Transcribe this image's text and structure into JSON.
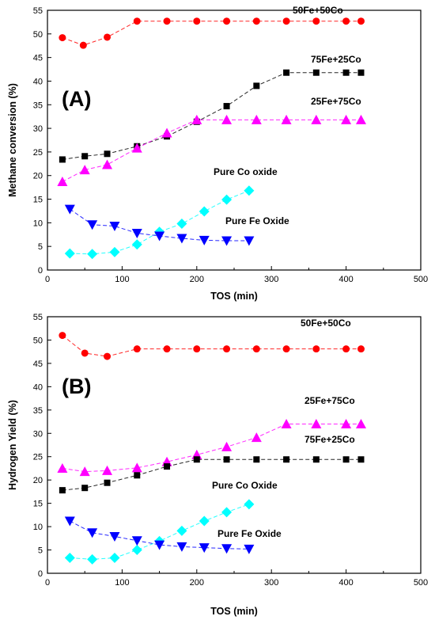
{
  "chart_data": [
    {
      "type": "line",
      "panel": "(A)",
      "xlabel": "TOS (min)",
      "ylabel": "Methane conversion (%)",
      "xlim": [
        0,
        500
      ],
      "ylim": [
        0,
        55
      ],
      "xticks": [
        0,
        100,
        200,
        300,
        400,
        500
      ],
      "yticks": [
        0,
        5,
        10,
        15,
        20,
        25,
        30,
        35,
        40,
        45,
        50,
        55
      ],
      "grid": false,
      "series": [
        {
          "name": "50Fe+50Co",
          "color": "#ff0000",
          "marker": "circle",
          "x": [
            20,
            48,
            80,
            120,
            160,
            200,
            240,
            280,
            320,
            360,
            400,
            420
          ],
          "y": [
            49.2,
            47.6,
            49.3,
            52.7,
            52.7,
            52.7,
            52.7,
            52.7,
            52.7,
            52.7,
            52.7,
            52.7
          ]
        },
        {
          "name": "75Fe+25Co",
          "color": "#000000",
          "marker": "square",
          "x": [
            20,
            50,
            80,
            120,
            160,
            200,
            240,
            280,
            320,
            360,
            400,
            420
          ],
          "y": [
            23.4,
            24.1,
            24.6,
            26.2,
            28.3,
            31.4,
            34.7,
            39.0,
            41.8,
            41.8,
            41.8,
            41.8
          ]
        },
        {
          "name": "25Fe+75Co",
          "color": "#ff00ff",
          "marker": "triangle-up",
          "x": [
            20,
            50,
            80,
            120,
            160,
            200,
            240,
            280,
            320,
            360,
            400,
            420
          ],
          "y": [
            18.7,
            21.2,
            22.3,
            25.8,
            29.0,
            31.8,
            31.8,
            31.8,
            31.8,
            31.8,
            31.8,
            31.8
          ]
        },
        {
          "name": "Pure Co oxide",
          "color": "#00ffff",
          "marker": "diamond",
          "x": [
            30,
            60,
            90,
            120,
            150,
            180,
            210,
            240,
            270
          ],
          "y": [
            3.5,
            3.4,
            3.8,
            5.4,
            8.1,
            9.8,
            12.4,
            14.9,
            16.8
          ]
        },
        {
          "name": "Pure Fe Oxide",
          "color": "#0000ff",
          "marker": "triangle-down",
          "x": [
            30,
            60,
            90,
            120,
            150,
            180,
            210,
            240,
            270
          ],
          "y": [
            12.9,
            9.6,
            9.3,
            7.8,
            7.2,
            6.7,
            6.3,
            6.2,
            6.2
          ]
        }
      ]
    },
    {
      "type": "line",
      "panel": "(B)",
      "xlabel": "TOS (min)",
      "ylabel": "Hydrogen Yield (%)",
      "xlim": [
        0,
        500
      ],
      "ylim": [
        0,
        55
      ],
      "xticks": [
        0,
        100,
        200,
        300,
        400,
        500
      ],
      "yticks": [
        0,
        5,
        10,
        15,
        20,
        25,
        30,
        35,
        40,
        45,
        50,
        55
      ],
      "grid": false,
      "series": [
        {
          "name": "50Fe+50Co",
          "color": "#ff0000",
          "marker": "circle",
          "x": [
            20,
            50,
            80,
            120,
            160,
            200,
            240,
            280,
            320,
            360,
            400,
            420
          ],
          "y": [
            51.0,
            47.2,
            46.5,
            48.1,
            48.1,
            48.1,
            48.1,
            48.1,
            48.1,
            48.1,
            48.1,
            48.1
          ]
        },
        {
          "name": "25Fe+75Co",
          "color": "#ff00ff",
          "marker": "triangle-up",
          "x": [
            20,
            50,
            80,
            120,
            160,
            200,
            240,
            280,
            320,
            360,
            400,
            420
          ],
          "y": [
            22.5,
            21.8,
            22.0,
            22.6,
            23.9,
            25.4,
            27.1,
            29.1,
            32.0,
            32.0,
            32.0,
            32.0
          ]
        },
        {
          "name": "75Fe+25Co",
          "color": "#000000",
          "marker": "square",
          "x": [
            20,
            50,
            80,
            120,
            160,
            200,
            240,
            280,
            320,
            360,
            400,
            420
          ],
          "y": [
            17.8,
            18.3,
            19.4,
            21.0,
            22.9,
            24.4,
            24.4,
            24.4,
            24.4,
            24.4,
            24.4,
            24.4
          ]
        },
        {
          "name": "Pure Co Oxide",
          "color": "#00ffff",
          "marker": "diamond",
          "x": [
            30,
            60,
            90,
            120,
            150,
            180,
            210,
            240,
            270
          ],
          "y": [
            3.3,
            3.0,
            3.3,
            5.0,
            6.9,
            9.1,
            11.2,
            13.1,
            14.8
          ]
        },
        {
          "name": "Pure Fe Oxide",
          "color": "#0000ff",
          "marker": "triangle-down",
          "x": [
            30,
            60,
            90,
            120,
            150,
            180,
            210,
            240,
            270
          ],
          "y": [
            11.2,
            8.7,
            7.9,
            7.0,
            6.1,
            5.7,
            5.5,
            5.3,
            5.2
          ]
        }
      ]
    }
  ]
}
